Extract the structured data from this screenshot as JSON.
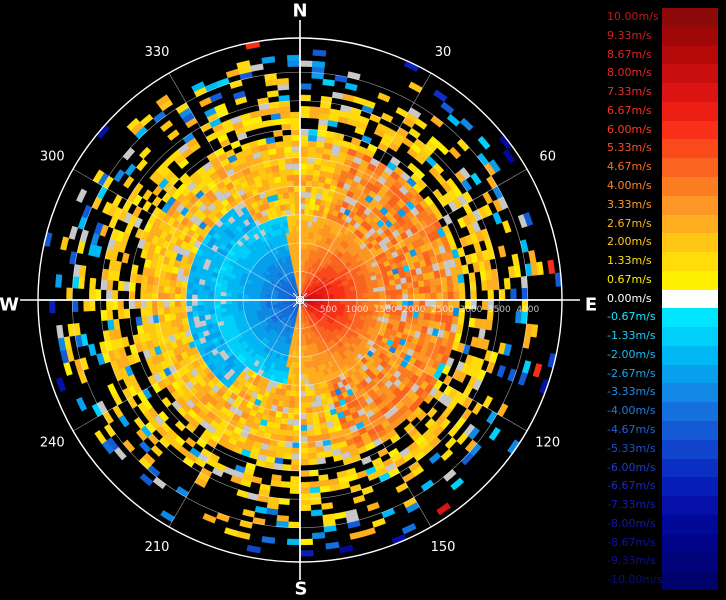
{
  "compass": {
    "north": "N",
    "east": "E",
    "south": "S",
    "west": "W"
  },
  "azimuth_labels": [
    {
      "deg": 30,
      "text": "30"
    },
    {
      "deg": 60,
      "text": "60"
    },
    {
      "deg": 120,
      "text": "120"
    },
    {
      "deg": 150,
      "text": "150"
    },
    {
      "deg": 210,
      "text": "210"
    },
    {
      "deg": 240,
      "text": "240"
    },
    {
      "deg": 300,
      "text": "300"
    },
    {
      "deg": 330,
      "text": "330"
    }
  ],
  "range_labels": [
    {
      "value": 500,
      "text": "500"
    },
    {
      "value": 1000,
      "text": "1000"
    },
    {
      "value": 1500,
      "text": "1500"
    },
    {
      "value": 2000,
      "text": "2000"
    },
    {
      "value": 2500,
      "text": "2500"
    },
    {
      "value": 3000,
      "text": "3000"
    },
    {
      "value": 3500,
      "text": "3500"
    },
    {
      "value": 4000,
      "text": "4000"
    }
  ],
  "max_range": 4600,
  "colors": {
    "background": "#000000",
    "grid": "#ffffff",
    "nodata": "#c8c8c8",
    "cursor": "#ffffff"
  },
  "legend": [
    {
      "label": "10.00m/s",
      "color": "#8c0a0a",
      "text_color": "#c81818"
    },
    {
      "label": "9.33m/s",
      "color": "#a00808",
      "text_color": "#d22020"
    },
    {
      "label": "8.67m/s",
      "color": "#b40a0a",
      "text_color": "#dc2424"
    },
    {
      "label": "8.00m/s",
      "color": "#c80e0e",
      "text_color": "#e62828"
    },
    {
      "label": "7.33m/s",
      "color": "#dc1414",
      "text_color": "#f02c2c"
    },
    {
      "label": "6.67m/s",
      "color": "#ec1e14",
      "text_color": "#f53224"
    },
    {
      "label": "6.00m/s",
      "color": "#f83018",
      "text_color": "#fa3c22"
    },
    {
      "label": "5.33m/s",
      "color": "#fa4a1c",
      "text_color": "#fb5226"
    },
    {
      "label": "4.67m/s",
      "color": "#fb6420",
      "text_color": "#fc6a26"
    },
    {
      "label": "4.00m/s",
      "color": "#fc7c22",
      "text_color": "#fd8228"
    },
    {
      "label": "3.33m/s",
      "color": "#fd9624",
      "text_color": "#fe9a28"
    },
    {
      "label": "2.67m/s",
      "color": "#feae1e",
      "text_color": "#feb222"
    },
    {
      "label": "2.00m/s",
      "color": "#ffc614",
      "text_color": "#ffca18"
    },
    {
      "label": "1.33m/s",
      "color": "#ffdc0a",
      "text_color": "#ffde10"
    },
    {
      "label": "0.67m/s",
      "color": "#fff000",
      "text_color": "#fff200"
    },
    {
      "label": "0.00m/s",
      "color": "#ffffff",
      "text_color": "#ffffff"
    },
    {
      "label": "-0.67m/s",
      "color": "#00e6ff",
      "text_color": "#14e6ff"
    },
    {
      "label": "-1.33m/s",
      "color": "#00d0fa",
      "text_color": "#14d2fa"
    },
    {
      "label": "-2.00m/s",
      "color": "#00b8f4",
      "text_color": "#14bcf4"
    },
    {
      "label": "-2.67m/s",
      "color": "#08a0ec",
      "text_color": "#18a4ee"
    },
    {
      "label": "-3.33m/s",
      "color": "#1088e4",
      "text_color": "#208ee6"
    },
    {
      "label": "-4.00m/s",
      "color": "#1470dc",
      "text_color": "#2478de"
    },
    {
      "label": "-4.67m/s",
      "color": "#145ad4",
      "text_color": "#2462d6"
    },
    {
      "label": "-5.33m/s",
      "color": "#1044cc",
      "text_color": "#204ece"
    },
    {
      "label": "-6.00m/s",
      "color": "#0c30c4",
      "text_color": "#1c3cc8"
    },
    {
      "label": "-6.67m/s",
      "color": "#081eb8",
      "text_color": "#182ac0"
    },
    {
      "label": "-7.33m/s",
      "color": "#0410a8",
      "text_color": "#141eb4"
    },
    {
      "label": "-8.00m/s",
      "color": "#020898",
      "text_color": "#1218a8"
    },
    {
      "label": "-8.67m/s",
      "color": "#010488",
      "text_color": "#10129c"
    },
    {
      "label": "-9.33m/s",
      "color": "#00037a",
      "text_color": "#0e0e90"
    },
    {
      "label": "-10.00m/s",
      "color": "#00026c",
      "text_color": "#0c0c84"
    }
  ]
}
